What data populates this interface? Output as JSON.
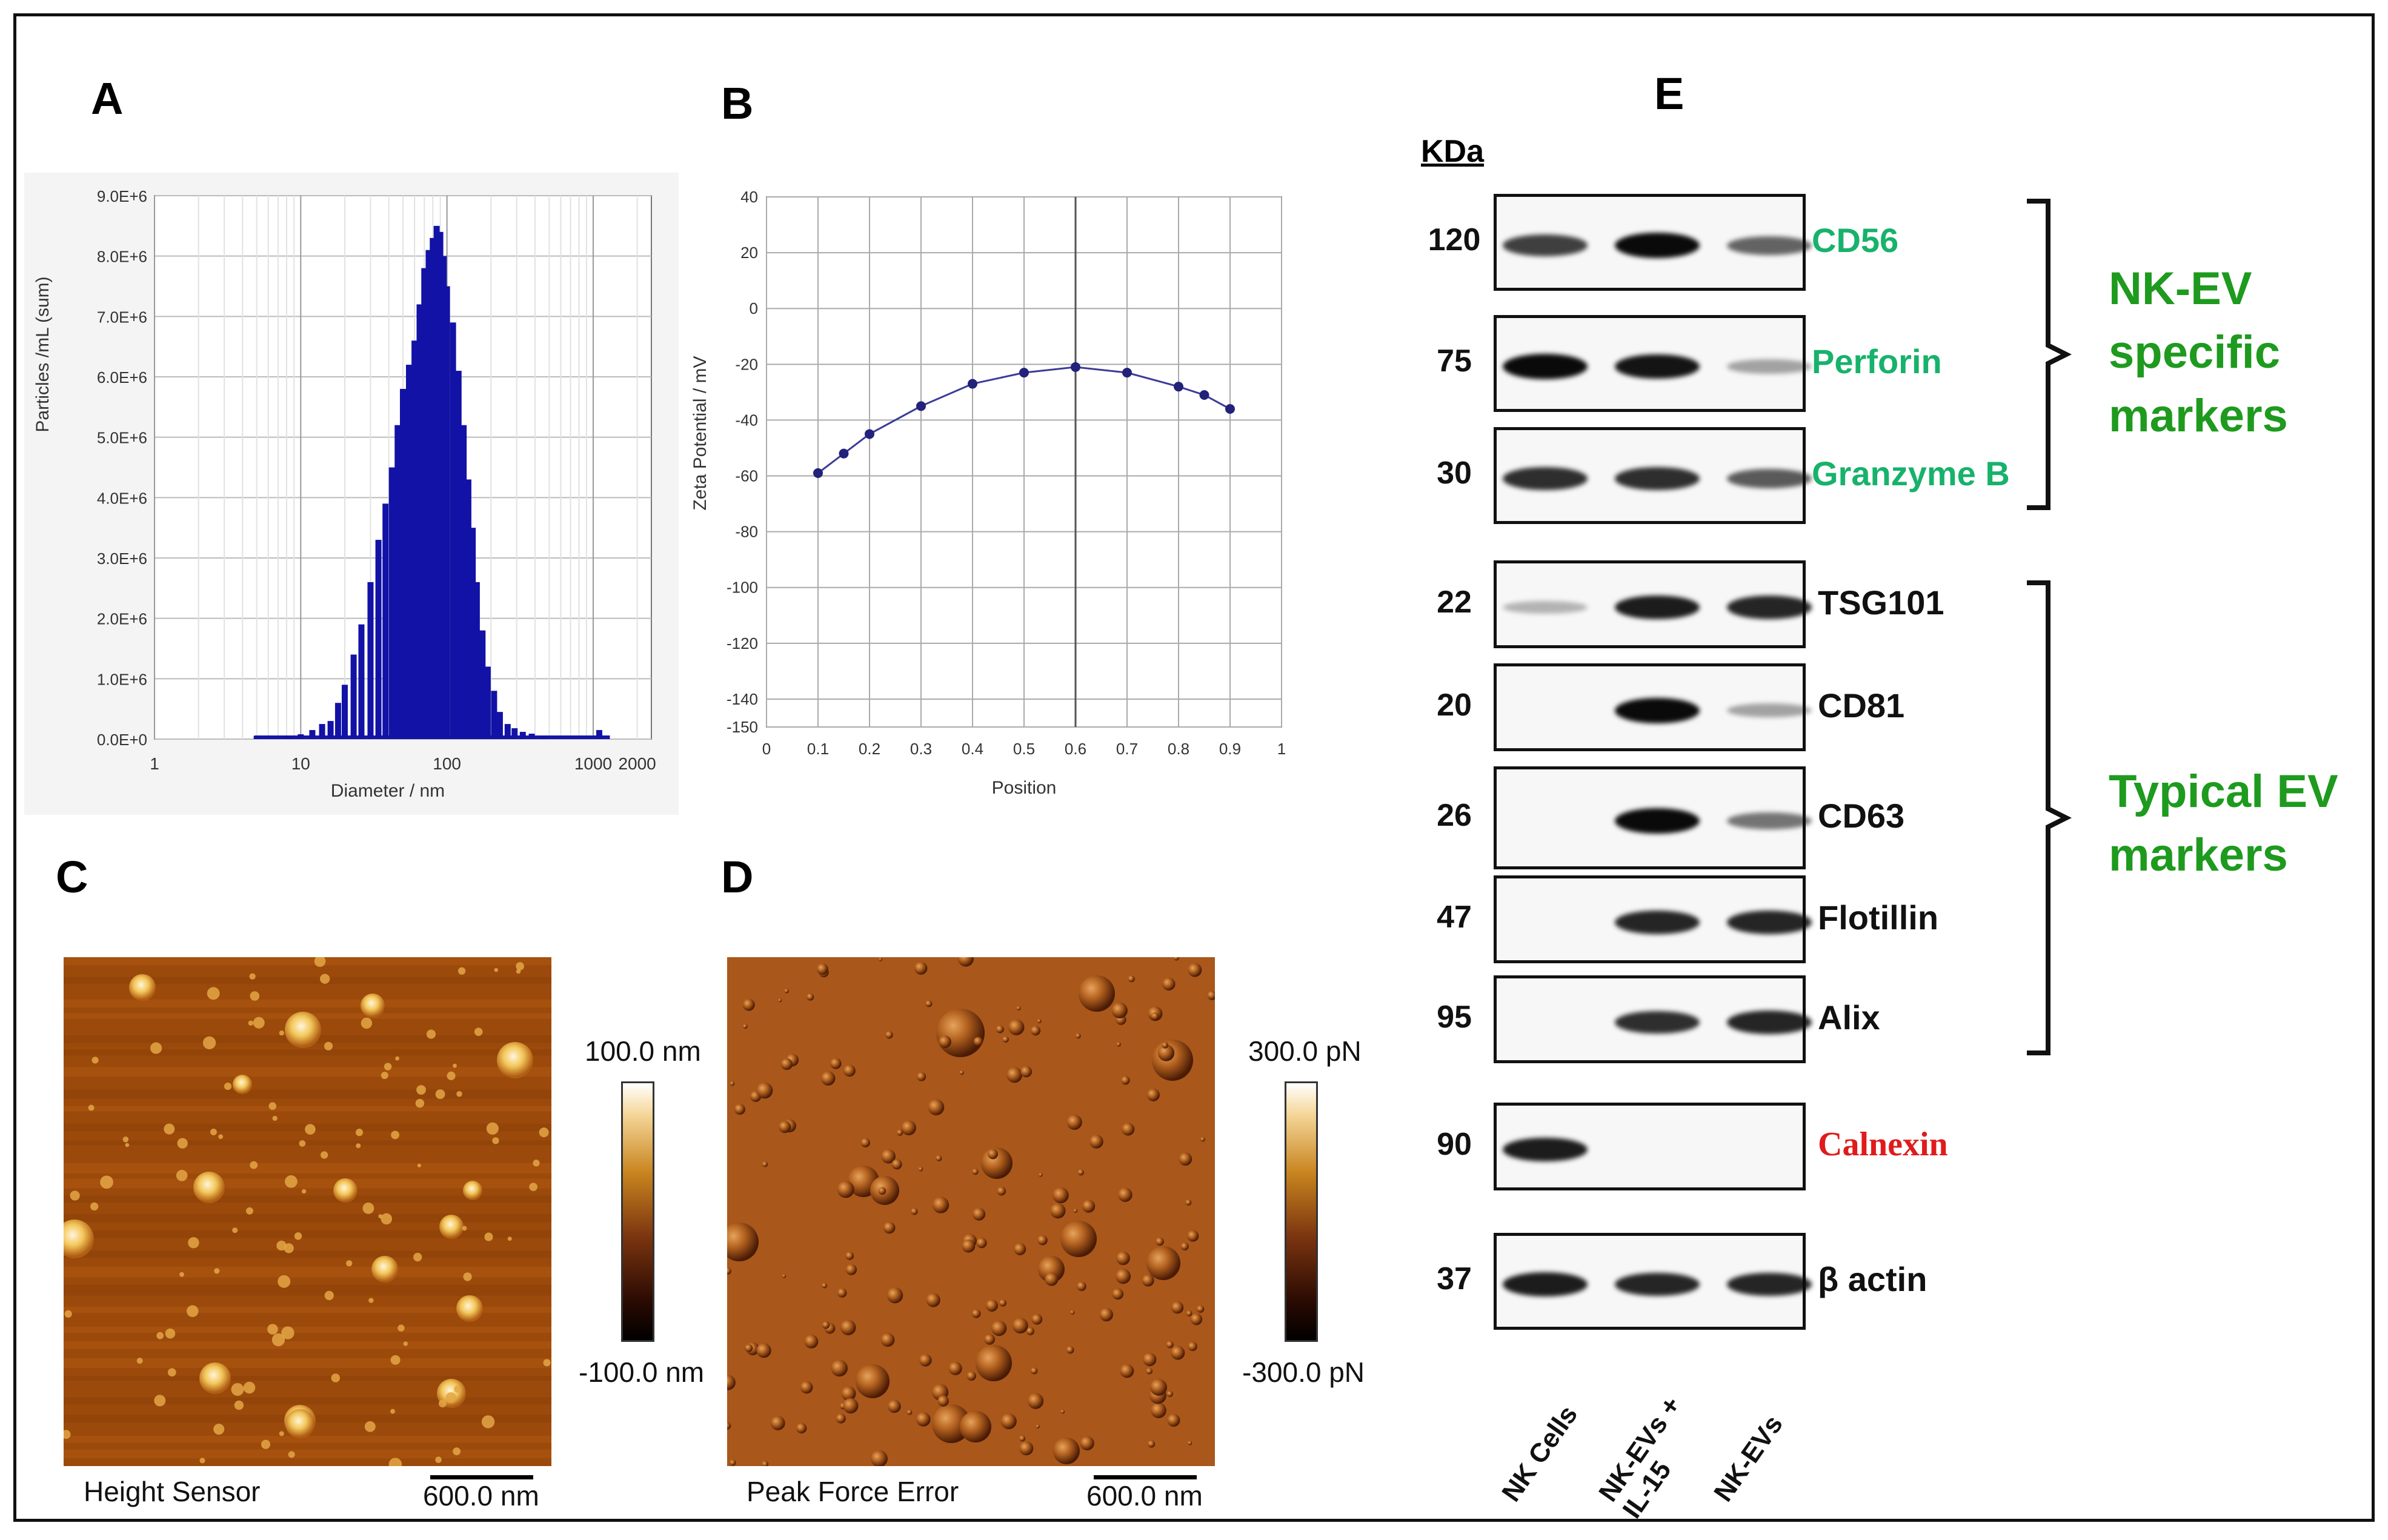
{
  "panels": {
    "a": "A",
    "b": "B",
    "c": "C",
    "d": "D",
    "e": "E"
  },
  "chart_data": [
    {
      "type": "bar",
      "panel": "A",
      "xlabel": "Diameter / nm",
      "ylabel": "Particles /mL (sum)",
      "x_scale": "log",
      "x_ticks": [
        1,
        10,
        100,
        1000,
        2000
      ],
      "x_tick_labels": [
        "1",
        "10",
        "100",
        "1000",
        "2000"
      ],
      "y_ticks": [
        "0.0E+0",
        "1.0E+6",
        "2.0E+6",
        "3.0E+6",
        "4.0E+6",
        "5.0E+6",
        "6.0E+6",
        "7.0E+6",
        "8.0E+6",
        "9.0E+6"
      ],
      "ylim": [
        0,
        9000000
      ],
      "x": [
        5,
        8,
        10,
        12,
        14,
        16,
        18,
        20,
        23,
        26,
        30,
        34,
        38,
        42,
        46,
        50,
        55,
        60,
        65,
        70,
        75,
        80,
        85,
        90,
        95,
        100,
        110,
        120,
        130,
        140,
        150,
        160,
        175,
        190,
        210,
        230,
        260,
        290,
        330,
        380,
        450,
        1100
      ],
      "values": [
        50000,
        60000,
        80000,
        150000,
        250000,
        300000,
        600000,
        900000,
        1400000,
        1900000,
        2600000,
        3300000,
        3900000,
        4500000,
        5200000,
        5800000,
        6200000,
        6600000,
        7200000,
        7800000,
        8100000,
        8300000,
        8500000,
        8400000,
        8000000,
        7500000,
        6900000,
        6100000,
        5200000,
        4300000,
        3500000,
        2600000,
        1800000,
        1200000,
        800000,
        450000,
        250000,
        180000,
        120000,
        90000,
        50000,
        150000
      ]
    },
    {
      "type": "line",
      "panel": "B",
      "xlabel": "Position",
      "ylabel": "Zeta Potential / mV",
      "x_ticks": [
        "0",
        "0.1",
        "0.2",
        "0.3",
        "0.4",
        "0.5",
        "0.6",
        "0.7",
        "0.8",
        "0.9",
        "1"
      ],
      "y_ticks": [
        "40",
        "20",
        "0",
        "-20",
        "-40",
        "-60",
        "-80",
        "-100",
        "-120",
        "-140",
        "-150"
      ],
      "xlim": [
        0,
        1
      ],
      "ylim": [
        -150,
        40
      ],
      "x": [
        0.1,
        0.15,
        0.2,
        0.3,
        0.4,
        0.5,
        0.6,
        0.7,
        0.8,
        0.85,
        0.9
      ],
      "y": [
        -59,
        -52,
        -45,
        -35,
        -27,
        -23,
        -21,
        -23,
        -28,
        -31,
        -36
      ]
    }
  ],
  "afm": {
    "c": {
      "caption": "Height Sensor",
      "scale": "600.0 nm",
      "cbar_max": "100.0 nm",
      "cbar_min": "-100.0 nm"
    },
    "d": {
      "caption": "Peak Force Error",
      "scale": "600.0 nm",
      "cbar_max": "300.0 pN",
      "cbar_min": "-300.0 pN"
    }
  },
  "western": {
    "kda_header": "KDa",
    "rows": [
      {
        "kda": "120",
        "marker": "CD56",
        "color": "#17b26b",
        "bands": [
          0.7,
          1.0,
          0.5
        ]
      },
      {
        "kda": "75",
        "marker": "Perforin",
        "color": "#17b26b",
        "bands": [
          1.0,
          0.95,
          0.15
        ]
      },
      {
        "kda": "30",
        "marker": "Granzyme B",
        "color": "#17b26b",
        "bands": [
          0.8,
          0.8,
          0.55
        ]
      },
      {
        "kda": "22",
        "marker": "TSG101",
        "color": "#111111",
        "bands": [
          0.05,
          0.9,
          0.85
        ]
      },
      {
        "kda": "20",
        "marker": "CD81",
        "color": "#111111",
        "bands": [
          0.0,
          1.0,
          0.15
        ]
      },
      {
        "kda": "26",
        "marker": "CD63",
        "color": "#111111",
        "bands": [
          0.0,
          1.0,
          0.4
        ]
      },
      {
        "kda": "47",
        "marker": "Flotillin",
        "color": "#111111",
        "bands": [
          0.0,
          0.85,
          0.85
        ]
      },
      {
        "kda": "95",
        "marker": "Alix",
        "color": "#111111",
        "bands": [
          0.0,
          0.8,
          0.85
        ]
      },
      {
        "kda": "90",
        "marker": "Calnexin",
        "color": "#e01b1b",
        "bands": [
          0.9,
          0.0,
          0.0
        ]
      },
      {
        "kda": "37",
        "marker": "β actin",
        "color": "#111111",
        "bands": [
          0.9,
          0.85,
          0.85
        ]
      }
    ],
    "groups": [
      {
        "label": "NK-EV specific markers"
      },
      {
        "label": "Typical EV markers"
      }
    ],
    "lanes": [
      "NK Cells",
      "NK-EVs +\nIL-15",
      "NK-EVs"
    ]
  }
}
